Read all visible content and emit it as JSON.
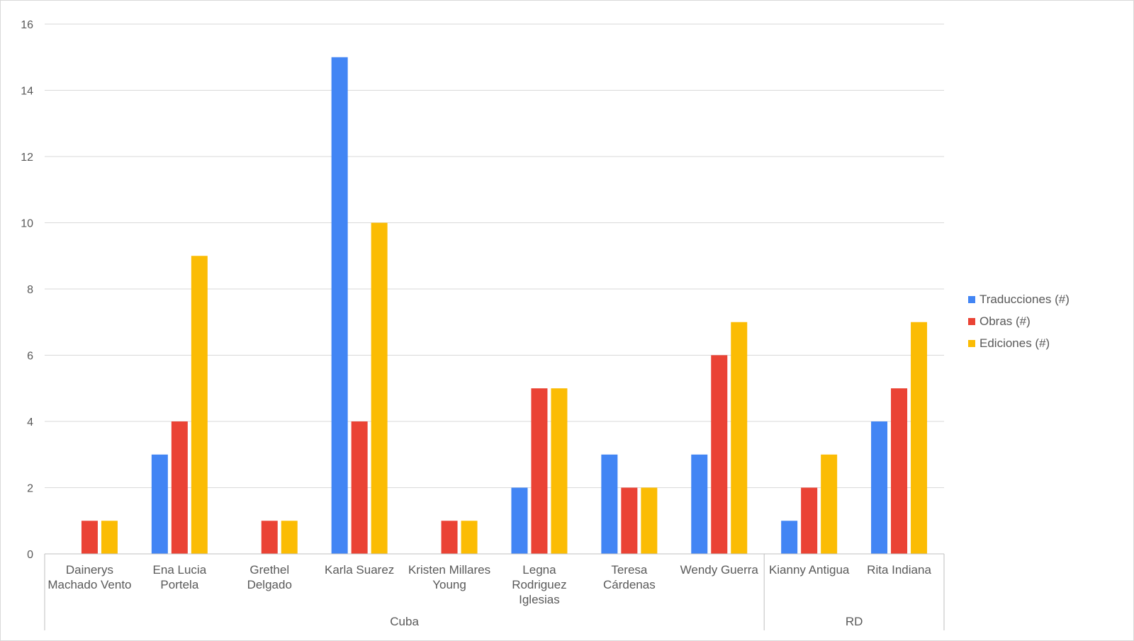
{
  "chart_data": {
    "type": "bar",
    "title": "",
    "xlabel": "",
    "ylabel": "",
    "ylim": [
      0,
      16
    ],
    "yticks": [
      0,
      2,
      4,
      6,
      8,
      10,
      12,
      14,
      16
    ],
    "grid": true,
    "legend_position": "right",
    "categories": [
      [
        "Dainerys",
        "Machado Vento"
      ],
      [
        "Ena Lucia",
        "Portela"
      ],
      [
        "Grethel",
        "Delgado"
      ],
      [
        "Karla Suarez"
      ],
      [
        "Kristen Millares",
        "Young"
      ],
      [
        "Legna",
        "Rodriguez",
        "Iglesias"
      ],
      [
        "Teresa",
        "Cárdenas"
      ],
      [
        "Wendy Guerra"
      ],
      [
        "Kianny Antigua"
      ],
      [
        "Rita Indiana"
      ]
    ],
    "groups": [
      {
        "label": "Cuba",
        "start": 0,
        "end": 7
      },
      {
        "label": "RD",
        "start": 8,
        "end": 9
      }
    ],
    "series": [
      {
        "name": "Traducciones (#)",
        "color": "#4285f4",
        "values": [
          0,
          3,
          0,
          15,
          0,
          2,
          3,
          3,
          1,
          4
        ]
      },
      {
        "name": "Obras (#)",
        "color": "#ea4335",
        "values": [
          1,
          4,
          1,
          4,
          1,
          5,
          2,
          6,
          2,
          5
        ]
      },
      {
        "name": "Ediciones (#)",
        "color": "#fbbc04",
        "values": [
          1,
          9,
          1,
          10,
          1,
          5,
          2,
          7,
          3,
          7
        ]
      }
    ]
  }
}
